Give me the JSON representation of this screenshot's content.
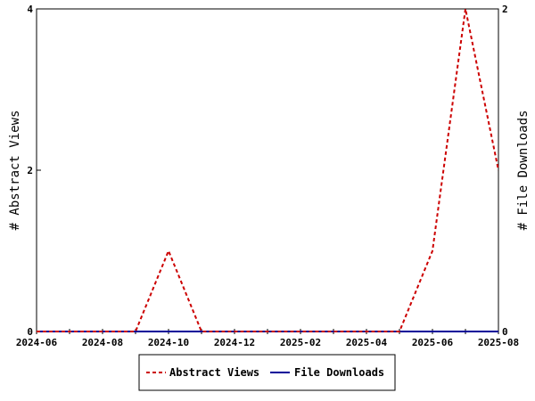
{
  "chart_data": {
    "type": "line",
    "x": [
      "2024-06",
      "2024-07",
      "2024-08",
      "2024-09",
      "2024-10",
      "2024-11",
      "2024-12",
      "2025-01",
      "2025-02",
      "2025-03",
      "2025-04",
      "2025-05",
      "2025-06",
      "2025-07",
      "2025-08"
    ],
    "x_tick_labels": [
      "2024-06",
      "2024-08",
      "2024-10",
      "2024-12",
      "2025-02",
      "2025-04",
      "2025-06",
      "2025-08"
    ],
    "series": [
      {
        "name": "Abstract Views",
        "axis": "left",
        "color": "#cc0000",
        "style": "dashed",
        "values": [
          0,
          0,
          0,
          0,
          1,
          0,
          0,
          0,
          0,
          0,
          0,
          0,
          1,
          4,
          2
        ]
      },
      {
        "name": "File Downloads",
        "axis": "right",
        "color": "#000099",
        "style": "solid",
        "values": [
          0,
          0,
          0,
          0,
          0,
          0,
          0,
          0,
          0,
          0,
          0,
          0,
          0,
          0,
          0
        ]
      }
    ],
    "ylabel": "# Abstract Views",
    "ylabel_right": "# File Downloads",
    "ylim": [
      0,
      4
    ],
    "yticks": [
      "0",
      "2",
      "4"
    ],
    "ylim_right": [
      0,
      2
    ],
    "yticks_right": [
      "0",
      "2"
    ],
    "grid": false,
    "legend_position": "bottom-center"
  }
}
